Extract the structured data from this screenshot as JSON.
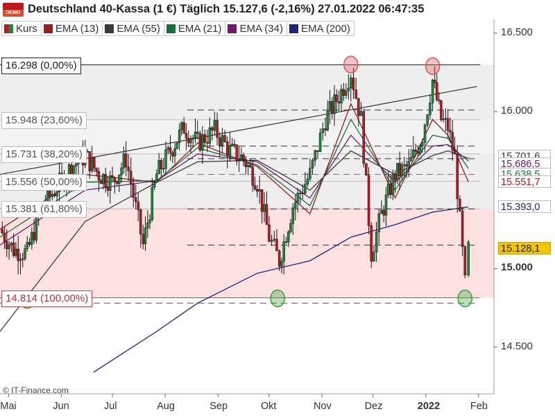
{
  "header": {
    "title": "Deutschland 40-Kassa (1 €) Täglich 15.127,6 (-2,16%) 27.01.2022 06:47:35",
    "logo_text": "DEMO"
  },
  "legend": [
    {
      "label": "Kurs",
      "color": "kurs"
    },
    {
      "label": "EMA (13)",
      "color": "#9b1a1a"
    },
    {
      "label": "EMA (55)",
      "color": "#3a3a3a"
    },
    {
      "label": "EMA (21)",
      "color": "#1a6e3c"
    },
    {
      "label": "EMA (34)",
      "color": "#6e1a6e"
    },
    {
      "label": "EMA (200)",
      "color": "#1a237e"
    }
  ],
  "credit": "© IT-Finance.com",
  "chart_data": {
    "type": "candlestick",
    "title": "Deutschland 40-Kassa (1 €) Täglich",
    "y_ticks": [
      {
        "value": 16500,
        "label": "16.500"
      },
      {
        "value": 16000,
        "label": "16.000"
      },
      {
        "value": 15000,
        "label": "15.000"
      },
      {
        "value": 14500,
        "label": "14.500"
      }
    ],
    "x_ticks": [
      {
        "date": "2021-05-01",
        "label": "Mai"
      },
      {
        "date": "2021-06-01",
        "label": "Jun"
      },
      {
        "date": "2021-07-01",
        "label": "Jul"
      },
      {
        "date": "2021-08-01",
        "label": "Aug"
      },
      {
        "date": "2021-09-01",
        "label": "Sep"
      },
      {
        "date": "2021-10-01",
        "label": "Okt"
      },
      {
        "date": "2021-11-01",
        "label": "Nov"
      },
      {
        "date": "2021-12-01",
        "label": "Dez"
      },
      {
        "date": "2022-01-01",
        "label": "2022",
        "bold": true
      },
      {
        "date": "2022-02-01",
        "label": "Feb"
      }
    ],
    "fibonacci": [
      {
        "value": 16298,
        "label": "16.298 (0,00%)",
        "role": "top"
      },
      {
        "value": 15948,
        "label": "15.948 (23,60%)"
      },
      {
        "value": 15731,
        "label": "15.731 (38,20%)"
      },
      {
        "value": 15556,
        "label": "15.556 (50,00%)"
      },
      {
        "value": 15381,
        "label": "15.381 (61,80%)"
      },
      {
        "value": 14814,
        "label": "14.814 (100,00%)",
        "role": "bottom"
      }
    ],
    "price_labels": [
      {
        "value": 15701.6,
        "label": "15.701,6",
        "color": "#333333",
        "bg": "#ffffff"
      },
      {
        "value": 15686.5,
        "label": "15.686,5",
        "color": "#6e1a6e",
        "bg": "#ffffff"
      },
      {
        "value": 15638.5,
        "label": "15.638,5",
        "color": "#1a6e3c",
        "bg": "#ffffff"
      },
      {
        "value": 15551.7,
        "label": "15.551,7",
        "color": "#b01a1a",
        "bg": "#ffffff"
      },
      {
        "value": 15393.0,
        "label": "15.393,0",
        "color": "#1a237e",
        "bg": "#ffffff"
      },
      {
        "value": 15128.1,
        "label": "15.128,1",
        "color": "#222222",
        "bg": "#f5c400"
      }
    ],
    "close_path": [
      [
        "2021-04-26",
        15250
      ],
      [
        "2021-05-04",
        15120
      ],
      [
        "2021-05-12",
        15100
      ],
      [
        "2021-05-20",
        15380
      ],
      [
        "2021-05-28",
        15500
      ],
      [
        "2021-06-07",
        15650
      ],
      [
        "2021-06-15",
        15720
      ],
      [
        "2021-06-23",
        15600
      ],
      [
        "2021-07-01",
        15550
      ],
      [
        "2021-07-09",
        15700
      ],
      [
        "2021-07-19",
        15150
      ],
      [
        "2021-07-27",
        15600
      ],
      [
        "2021-08-04",
        15750
      ],
      [
        "2021-08-12",
        15900
      ],
      [
        "2021-08-20",
        15800
      ],
      [
        "2021-08-30",
        15880
      ],
      [
        "2021-09-08",
        15750
      ],
      [
        "2021-09-16",
        15700
      ],
      [
        "2021-09-24",
        15550
      ],
      [
        "2021-10-01",
        15200
      ],
      [
        "2021-10-07",
        15050
      ],
      [
        "2021-10-15",
        15400
      ],
      [
        "2021-10-25",
        15600
      ],
      [
        "2021-11-03",
        15950
      ],
      [
        "2021-11-11",
        16100
      ],
      [
        "2021-11-18",
        16250
      ],
      [
        "2021-11-24",
        15950
      ],
      [
        "2021-11-30",
        15100
      ],
      [
        "2021-12-06",
        15350
      ],
      [
        "2021-12-14",
        15600
      ],
      [
        "2021-12-22",
        15650
      ],
      [
        "2021-12-30",
        15850
      ],
      [
        "2022-01-05",
        16200
      ],
      [
        "2022-01-10",
        15950
      ],
      [
        "2022-01-14",
        15900
      ],
      [
        "2022-01-18",
        15700
      ],
      [
        "2022-01-24",
        14900
      ],
      [
        "2022-01-26",
        15128
      ]
    ],
    "ema": [
      {
        "name": "EMA (13)",
        "color": "#9b1a1a",
        "points": [
          [
            "2021-04-26",
            15250
          ],
          [
            "2021-06-15",
            15600
          ],
          [
            "2021-07-27",
            15550
          ],
          [
            "2021-08-20",
            15800
          ],
          [
            "2021-09-24",
            15650
          ],
          [
            "2021-10-25",
            15350
          ],
          [
            "2021-11-18",
            16050
          ],
          [
            "2021-12-14",
            15450
          ],
          [
            "2022-01-05",
            15950
          ],
          [
            "2022-01-14",
            15850
          ],
          [
            "2022-01-26",
            15552
          ]
        ]
      },
      {
        "name": "EMA (21)",
        "color": "#1a6e3c",
        "points": [
          [
            "2021-04-26",
            15200
          ],
          [
            "2021-06-15",
            15550
          ],
          [
            "2021-07-27",
            15560
          ],
          [
            "2021-08-20",
            15770
          ],
          [
            "2021-09-24",
            15660
          ],
          [
            "2021-10-25",
            15400
          ],
          [
            "2021-11-18",
            15950
          ],
          [
            "2021-12-14",
            15500
          ],
          [
            "2022-01-05",
            15850
          ],
          [
            "2022-01-14",
            15830
          ],
          [
            "2022-01-26",
            15638
          ]
        ]
      },
      {
        "name": "EMA (34)",
        "color": "#6e1a6e",
        "points": [
          [
            "2021-04-26",
            15150
          ],
          [
            "2021-06-15",
            15500
          ],
          [
            "2021-07-27",
            15560
          ],
          [
            "2021-08-20",
            15730
          ],
          [
            "2021-09-24",
            15680
          ],
          [
            "2021-10-25",
            15450
          ],
          [
            "2021-11-18",
            15850
          ],
          [
            "2021-12-14",
            15550
          ],
          [
            "2022-01-05",
            15780
          ],
          [
            "2022-01-14",
            15790
          ],
          [
            "2022-01-26",
            15686
          ]
        ]
      },
      {
        "name": "EMA (55)",
        "color": "#3a3a3a",
        "points": [
          [
            "2021-04-26",
            14600
          ],
          [
            "2021-06-15",
            15300
          ],
          [
            "2021-07-27",
            15550
          ],
          [
            "2021-08-20",
            15680
          ],
          [
            "2021-09-24",
            15690
          ],
          [
            "2021-10-25",
            15500
          ],
          [
            "2021-11-18",
            15750
          ],
          [
            "2021-12-14",
            15600
          ],
          [
            "2022-01-05",
            15720
          ],
          [
            "2022-01-14",
            15750
          ],
          [
            "2022-01-26",
            15702
          ]
        ]
      },
      {
        "name": "EMA (200)",
        "color": "#1a237e",
        "points": [
          [
            "2021-06-20",
            14340
          ],
          [
            "2021-07-27",
            14600
          ],
          [
            "2021-08-20",
            14780
          ],
          [
            "2021-09-24",
            14970
          ],
          [
            "2021-10-25",
            15050
          ],
          [
            "2021-11-18",
            15200
          ],
          [
            "2021-12-14",
            15280
          ],
          [
            "2022-01-05",
            15360
          ],
          [
            "2022-01-26",
            15393
          ]
        ]
      }
    ],
    "trendlines": [
      {
        "from": [
          "2021-04-26",
          15600
        ],
        "to": [
          "2022-01-31",
          16160
        ]
      }
    ],
    "markers": [
      {
        "date": "2021-11-18",
        "value": 16300,
        "color": "#e05050"
      },
      {
        "date": "2022-01-05",
        "value": 16290,
        "color": "#e05050"
      },
      {
        "date": "2021-05-12",
        "value": 14800,
        "color": "#3ca03c"
      },
      {
        "date": "2021-10-06",
        "value": 14810,
        "color": "#3ca03c"
      },
      {
        "date": "2022-01-24",
        "value": 14810,
        "color": "#3ca03c"
      }
    ]
  }
}
